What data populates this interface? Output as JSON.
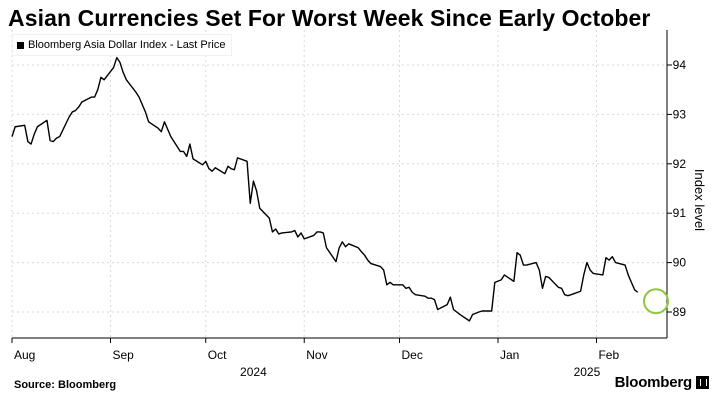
{
  "title": "Asian Currencies Set For Worst Week Since Early October",
  "legend": {
    "label": "Bloomberg Asia Dollar Index - Last Price"
  },
  "source": "Source: Bloomberg",
  "brand": "Bloomberg",
  "colors": {
    "line": "#000000",
    "grid": "#d9d9d9",
    "highlight_circle": "#8dc63f"
  },
  "chart_data": {
    "type": "line",
    "ylabel": "Index level",
    "ylim": [
      88.5,
      94.6
    ],
    "y_ticks": [
      89,
      90,
      91,
      92,
      93,
      94
    ],
    "y_axis_position": "right",
    "grid": true,
    "grid_axis": "vertical-at-month-starts",
    "month_labels": [
      {
        "label": "Aug",
        "date": "2024-08-01"
      },
      {
        "label": "Sep",
        "date": "2024-09-01"
      },
      {
        "label": "Oct",
        "date": "2024-10-01"
      },
      {
        "label": "Nov",
        "date": "2024-11-01"
      },
      {
        "label": "Dec",
        "date": "2024-12-01"
      },
      {
        "label": "Jan",
        "date": "2025-01-01"
      },
      {
        "label": "Feb",
        "date": "2025-02-01"
      }
    ],
    "year_labels": [
      {
        "label": "2024",
        "date": "2024-10-16"
      },
      {
        "label": "2025",
        "date": "2025-01-29"
      }
    ],
    "x_range": [
      "2024-08-01",
      "2025-02-21"
    ],
    "highlight": {
      "date": "2025-02-21",
      "value": 89.4,
      "marker": "circle"
    },
    "series": [
      {
        "name": "Bloomberg Asia Dollar Index - Last Price",
        "points": [
          [
            "2024-08-01",
            92.55
          ],
          [
            "2024-08-02",
            92.75
          ],
          [
            "2024-08-05",
            92.78
          ],
          [
            "2024-08-06",
            92.45
          ],
          [
            "2024-08-07",
            92.4
          ],
          [
            "2024-08-08",
            92.6
          ],
          [
            "2024-08-09",
            92.75
          ],
          [
            "2024-08-12",
            92.88
          ],
          [
            "2024-08-13",
            92.47
          ],
          [
            "2024-08-14",
            92.45
          ],
          [
            "2024-08-15",
            92.52
          ],
          [
            "2024-08-16",
            92.55
          ],
          [
            "2024-08-19",
            92.95
          ],
          [
            "2024-08-20",
            93.05
          ],
          [
            "2024-08-21",
            93.08
          ],
          [
            "2024-08-22",
            93.15
          ],
          [
            "2024-08-23",
            93.25
          ],
          [
            "2024-08-26",
            93.35
          ],
          [
            "2024-08-27",
            93.35
          ],
          [
            "2024-08-28",
            93.5
          ],
          [
            "2024-08-29",
            93.75
          ],
          [
            "2024-08-30",
            93.7
          ],
          [
            "2024-09-02",
            93.95
          ],
          [
            "2024-09-03",
            94.15
          ],
          [
            "2024-09-04",
            94.05
          ],
          [
            "2024-09-05",
            93.85
          ],
          [
            "2024-09-06",
            93.7
          ],
          [
            "2024-09-09",
            93.45
          ],
          [
            "2024-09-10",
            93.35
          ],
          [
            "2024-09-11",
            93.2
          ],
          [
            "2024-09-12",
            93.05
          ],
          [
            "2024-09-13",
            92.85
          ],
          [
            "2024-09-16",
            92.72
          ],
          [
            "2024-09-17",
            92.65
          ],
          [
            "2024-09-18",
            92.85
          ],
          [
            "2024-09-19",
            92.7
          ],
          [
            "2024-09-20",
            92.55
          ],
          [
            "2024-09-23",
            92.25
          ],
          [
            "2024-09-24",
            92.25
          ],
          [
            "2024-09-25",
            92.15
          ],
          [
            "2024-09-26",
            92.4
          ],
          [
            "2024-09-27",
            92.1
          ],
          [
            "2024-09-30",
            91.98
          ],
          [
            "2024-10-01",
            92.05
          ],
          [
            "2024-10-02",
            91.9
          ],
          [
            "2024-10-03",
            91.85
          ],
          [
            "2024-10-04",
            91.92
          ],
          [
            "2024-10-07",
            91.8
          ],
          [
            "2024-10-08",
            91.95
          ],
          [
            "2024-10-09",
            91.9
          ],
          [
            "2024-10-10",
            91.88
          ],
          [
            "2024-10-11",
            92.12
          ],
          [
            "2024-10-14",
            92.05
          ],
          [
            "2024-10-15",
            91.2
          ],
          [
            "2024-10-16",
            91.65
          ],
          [
            "2024-10-17",
            91.45
          ],
          [
            "2024-10-18",
            91.1
          ],
          [
            "2024-10-21",
            90.9
          ],
          [
            "2024-10-22",
            90.62
          ],
          [
            "2024-10-23",
            90.68
          ],
          [
            "2024-10-24",
            90.58
          ],
          [
            "2024-10-25",
            90.6
          ],
          [
            "2024-10-28",
            90.62
          ],
          [
            "2024-10-29",
            90.65
          ],
          [
            "2024-10-30",
            90.52
          ],
          [
            "2024-10-31",
            90.6
          ],
          [
            "2024-11-01",
            90.48
          ],
          [
            "2024-11-04",
            90.55
          ],
          [
            "2024-11-05",
            90.62
          ],
          [
            "2024-11-06",
            90.62
          ],
          [
            "2024-11-07",
            90.6
          ],
          [
            "2024-11-08",
            90.3
          ],
          [
            "2024-11-11",
            90.02
          ],
          [
            "2024-11-12",
            90.3
          ],
          [
            "2024-11-13",
            90.42
          ],
          [
            "2024-11-14",
            90.32
          ],
          [
            "2024-11-15",
            90.38
          ],
          [
            "2024-11-18",
            90.3
          ],
          [
            "2024-11-19",
            90.22
          ],
          [
            "2024-11-20",
            90.15
          ],
          [
            "2024-11-21",
            90.05
          ],
          [
            "2024-11-22",
            89.98
          ],
          [
            "2024-11-25",
            89.92
          ],
          [
            "2024-11-26",
            89.85
          ],
          [
            "2024-11-27",
            89.55
          ],
          [
            "2024-11-28",
            89.6
          ],
          [
            "2024-11-29",
            89.55
          ],
          [
            "2024-12-02",
            89.55
          ],
          [
            "2024-12-03",
            89.48
          ],
          [
            "2024-12-04",
            89.5
          ],
          [
            "2024-12-05",
            89.4
          ],
          [
            "2024-12-06",
            89.35
          ],
          [
            "2024-12-09",
            89.32
          ],
          [
            "2024-12-10",
            89.28
          ],
          [
            "2024-12-11",
            89.28
          ],
          [
            "2024-12-12",
            89.25
          ],
          [
            "2024-12-13",
            89.05
          ],
          [
            "2024-12-16",
            89.15
          ],
          [
            "2024-12-17",
            89.3
          ],
          [
            "2024-12-18",
            89.05
          ],
          [
            "2024-12-19",
            89.0
          ],
          [
            "2024-12-20",
            88.95
          ],
          [
            "2024-12-23",
            88.82
          ],
          [
            "2024-12-24",
            88.95
          ],
          [
            "2024-12-26",
            89.0
          ],
          [
            "2024-12-27",
            89.02
          ],
          [
            "2024-12-30",
            89.02
          ],
          [
            "2024-12-31",
            89.6
          ],
          [
            "2025-01-02",
            89.65
          ],
          [
            "2025-01-03",
            89.75
          ],
          [
            "2025-01-06",
            89.62
          ],
          [
            "2025-01-07",
            90.2
          ],
          [
            "2025-01-08",
            90.15
          ],
          [
            "2025-01-09",
            89.95
          ],
          [
            "2025-01-10",
            89.95
          ],
          [
            "2025-01-13",
            90.0
          ],
          [
            "2025-01-14",
            89.85
          ],
          [
            "2025-01-15",
            89.48
          ],
          [
            "2025-01-16",
            89.72
          ],
          [
            "2025-01-17",
            89.7
          ],
          [
            "2025-01-20",
            89.5
          ],
          [
            "2025-01-21",
            89.48
          ],
          [
            "2025-01-22",
            89.35
          ],
          [
            "2025-01-23",
            89.33
          ],
          [
            "2025-01-24",
            89.35
          ],
          [
            "2025-01-27",
            89.42
          ],
          [
            "2025-01-28",
            89.75
          ],
          [
            "2025-01-29",
            90.0
          ],
          [
            "2025-01-30",
            89.85
          ],
          [
            "2025-01-31",
            89.78
          ],
          [
            "2025-02-03",
            89.75
          ],
          [
            "2025-02-04",
            90.1
          ],
          [
            "2025-02-05",
            90.05
          ],
          [
            "2025-02-06",
            90.12
          ],
          [
            "2025-02-07",
            90.0
          ],
          [
            "2025-02-10",
            89.95
          ],
          [
            "2025-02-11",
            89.75
          ],
          [
            "2025-02-12",
            89.6
          ],
          [
            "2025-02-13",
            89.45
          ],
          [
            "2025-02-14",
            89.4
          ]
        ]
      }
    ]
  }
}
